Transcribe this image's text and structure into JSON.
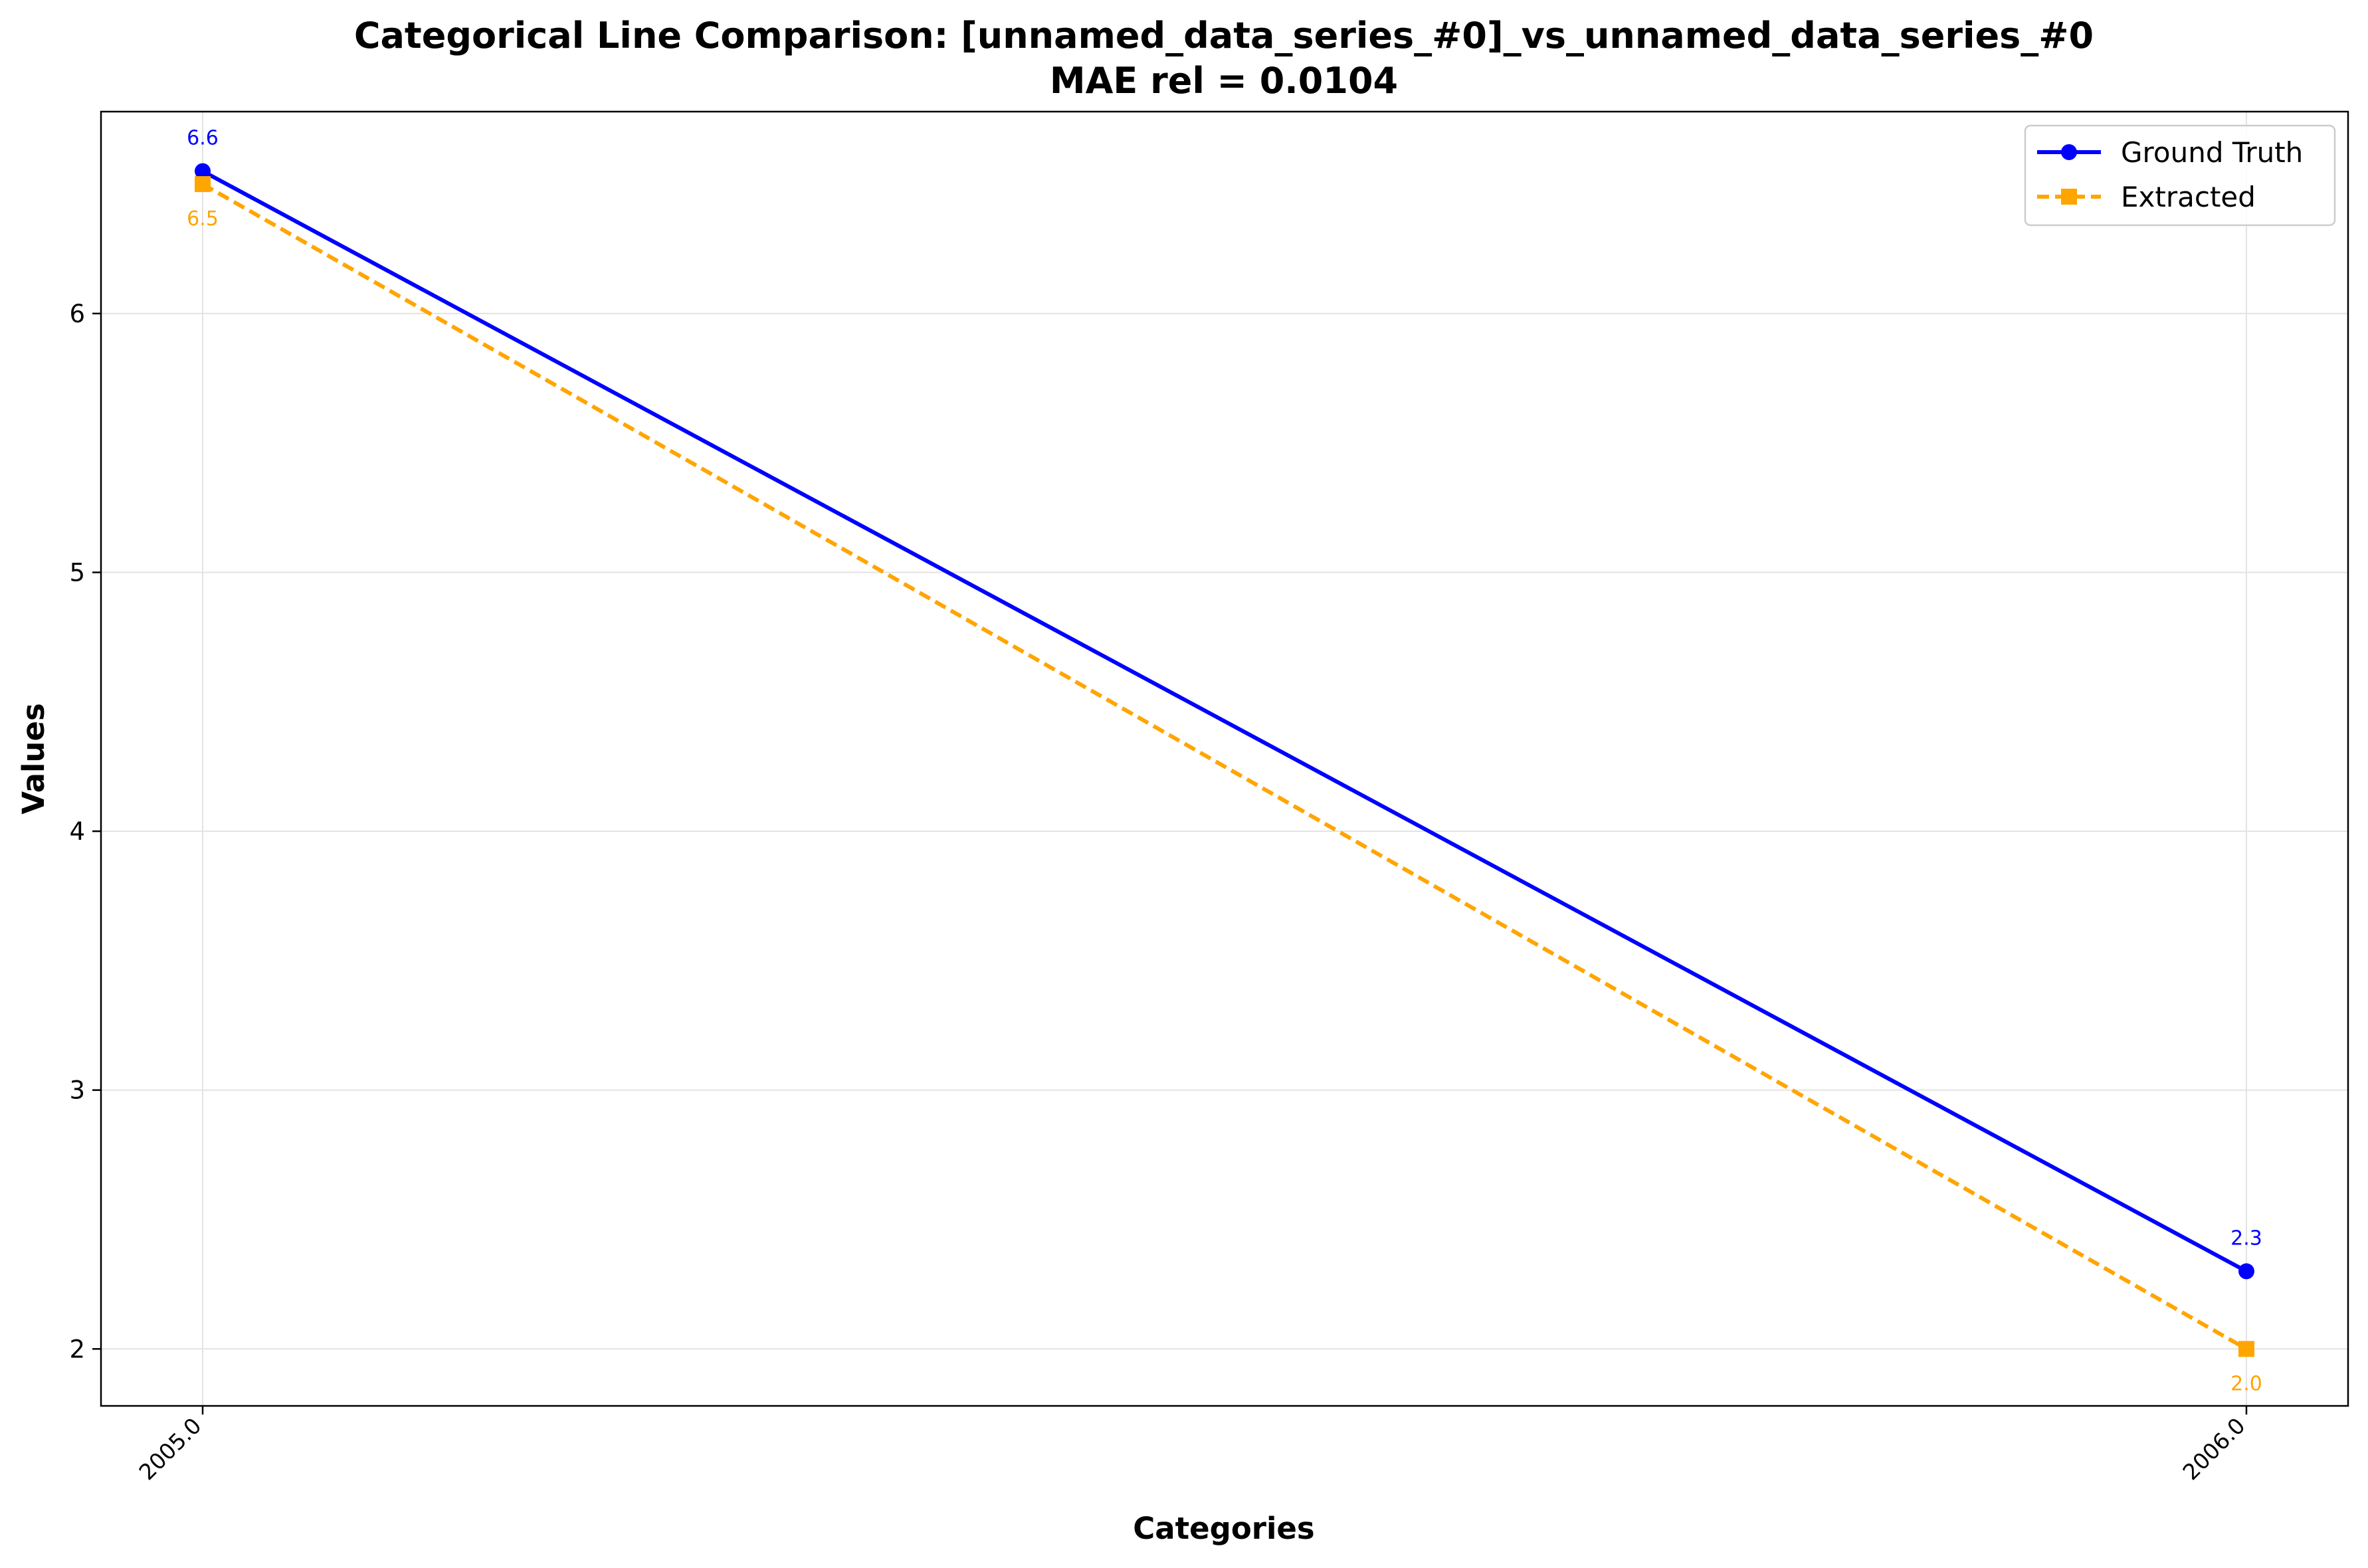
{
  "chart_data": {
    "type": "line",
    "title": "Categorical Line Comparison: [unnamed_data_series_#0]_vs_unnamed_data_series_#0",
    "subtitle": "MAE rel = 0.0104",
    "xlabel": "Categories",
    "ylabel": "Values",
    "categories": [
      "2005.0",
      "2006.0"
    ],
    "ylim": [
      1.78,
      6.78
    ],
    "yticks": [
      2,
      3,
      4,
      5,
      6
    ],
    "grid": true,
    "legend_position": "top-right",
    "series": [
      {
        "name": "Ground Truth",
        "values": [
          6.55,
          2.3
        ],
        "labels": [
          "6.6",
          "2.3"
        ],
        "color": "#0000ff",
        "line_style": "solid",
        "marker": "circle"
      },
      {
        "name": "Extracted",
        "values": [
          6.5,
          2.0
        ],
        "labels": [
          "6.5",
          "2.0"
        ],
        "color": "#ffa500",
        "line_style": "dashed",
        "marker": "square"
      }
    ]
  }
}
